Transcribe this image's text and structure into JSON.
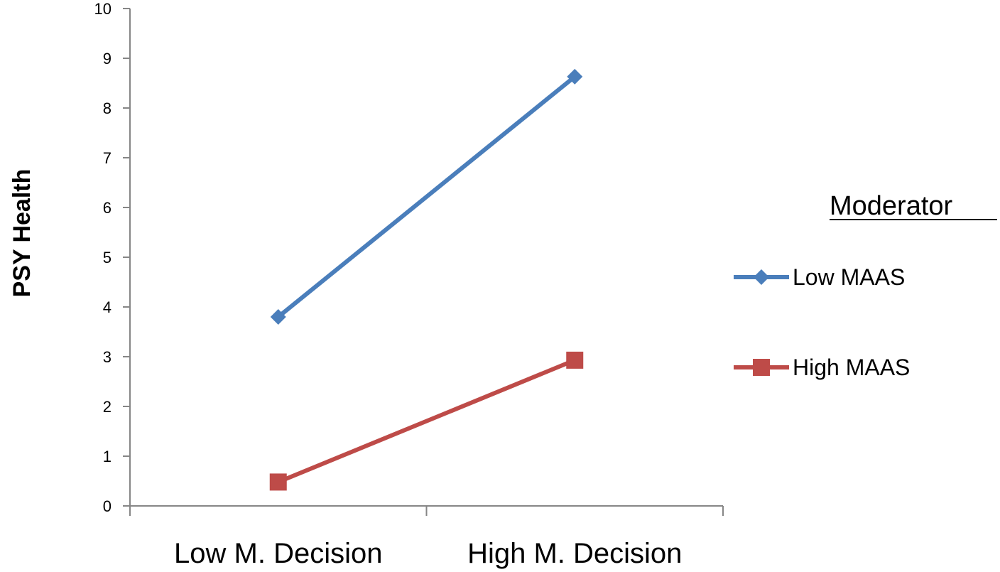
{
  "chart_data": {
    "type": "line",
    "categories": [
      "Low M. Decision",
      "High M. Decision"
    ],
    "series": [
      {
        "name": "Low MAAS",
        "values": [
          3.8,
          8.63
        ],
        "color": "#4a7ebb",
        "marker": "diamond"
      },
      {
        "name": "High MAAS",
        "values": [
          0.48,
          2.93
        ],
        "color": "#be4b48",
        "marker": "square"
      }
    ],
    "title": "",
    "xlabel": "",
    "ylabel": "PSY Health",
    "ylim": [
      0,
      10
    ],
    "yticks": [
      "0",
      "1",
      "2",
      "3",
      "4",
      "5",
      "6",
      "7",
      "8",
      "9",
      "10"
    ],
    "grid": false,
    "legend": {
      "title": "Moderator",
      "placement": "right"
    }
  }
}
